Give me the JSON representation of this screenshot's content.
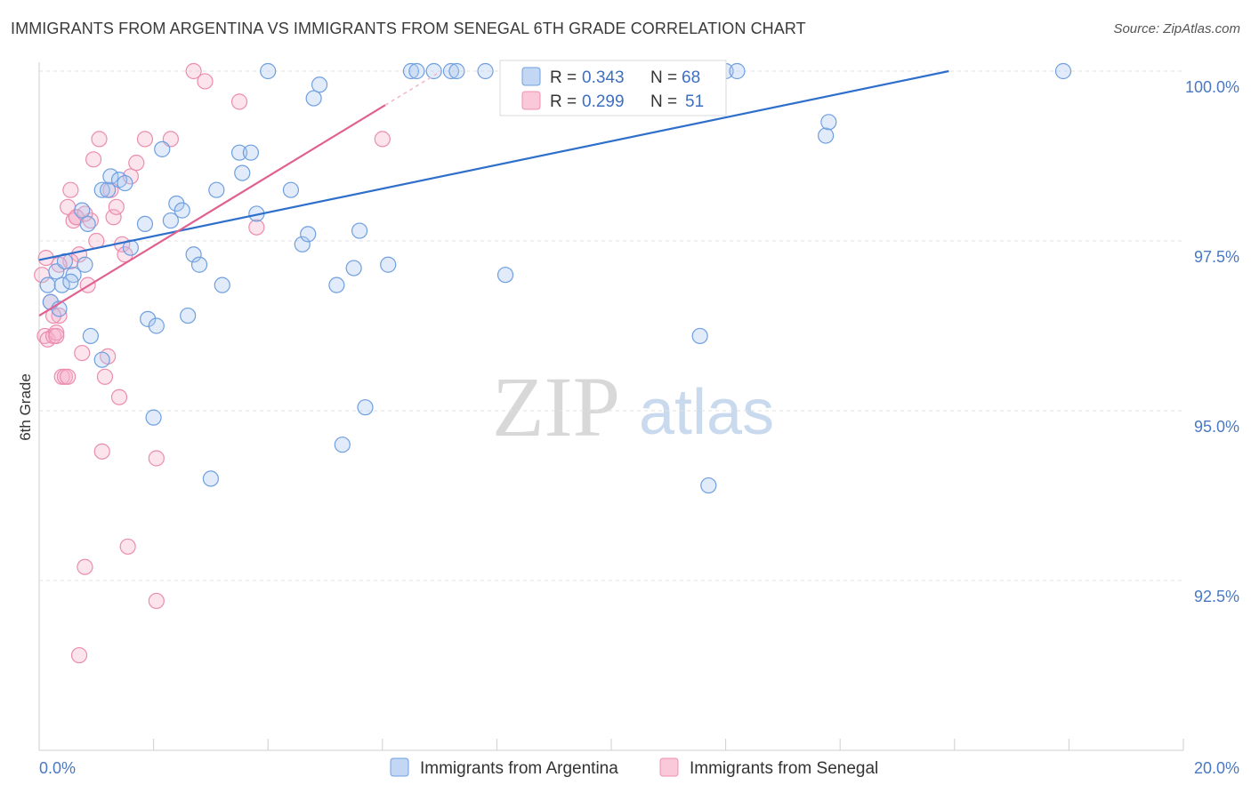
{
  "header": {
    "title": "IMMIGRANTS FROM ARGENTINA VS IMMIGRANTS FROM SENEGAL 6TH GRADE CORRELATION CHART",
    "source": "Source: ZipAtlas.com"
  },
  "watermark": {
    "zip": "ZIP",
    "atlas": "atlas"
  },
  "legend": {
    "r_label": "R =",
    "n_label": "N =",
    "argentina": {
      "r": "0.343",
      "n": "68"
    },
    "senegal": {
      "r": "0.299",
      "n": "51"
    }
  },
  "colors": {
    "argentina": "#6f9fe0",
    "argentina_line": "#2f6fcc",
    "senegal": "#f08fb0",
    "senegal_line": "#e06090",
    "axis_text": "#4a78c2"
  },
  "chart_data": {
    "type": "scatter",
    "title": "IMMIGRANTS FROM ARGENTINA VS IMMIGRANTS FROM SENEGAL 6TH GRADE CORRELATION CHART",
    "xlabel": "",
    "ylabel": "6th Grade",
    "xlim": [
      0,
      20
    ],
    "ylim": [
      90.2,
      100.45
    ],
    "x_tick_labels": [
      "0.0%",
      "20.0%"
    ],
    "y_ticks": [
      {
        "value": 100.0,
        "label": "100.0%"
      },
      {
        "value": 97.5,
        "label": "97.5%"
      },
      {
        "value": 95.0,
        "label": "95.0%"
      },
      {
        "value": 92.5,
        "label": "92.5%"
      }
    ],
    "series": [
      {
        "name": "Immigrants from Argentina",
        "color": "#6f9fe0",
        "trend": {
          "x": [
            0,
            15.9
          ],
          "y": [
            97.22,
            100.0
          ]
        },
        "points": [
          [
            0.15,
            96.85
          ],
          [
            0.2,
            96.6
          ],
          [
            0.35,
            96.5
          ],
          [
            0.3,
            97.05
          ],
          [
            0.4,
            96.85
          ],
          [
            0.45,
            97.2
          ],
          [
            0.6,
            97.0
          ],
          [
            0.8,
            97.15
          ],
          [
            0.75,
            97.95
          ],
          [
            0.85,
            97.75
          ],
          [
            0.9,
            96.1
          ],
          [
            1.1,
            98.25
          ],
          [
            1.2,
            98.25
          ],
          [
            1.25,
            98.45
          ],
          [
            1.4,
            98.4
          ],
          [
            1.5,
            98.35
          ],
          [
            1.6,
            97.4
          ],
          [
            1.85,
            97.75
          ],
          [
            1.9,
            96.35
          ],
          [
            2.05,
            96.25
          ],
          [
            2.0,
            94.9
          ],
          [
            2.15,
            98.85
          ],
          [
            2.3,
            97.8
          ],
          [
            2.4,
            98.05
          ],
          [
            2.5,
            97.95
          ],
          [
            2.6,
            96.4
          ],
          [
            2.7,
            97.3
          ],
          [
            2.8,
            97.15
          ],
          [
            3.0,
            94.0
          ],
          [
            3.1,
            98.25
          ],
          [
            3.2,
            96.85
          ],
          [
            3.5,
            98.8
          ],
          [
            3.55,
            98.5
          ],
          [
            3.7,
            98.8
          ],
          [
            3.8,
            97.9
          ],
          [
            4.0,
            100.0
          ],
          [
            4.4,
            98.25
          ],
          [
            4.6,
            97.45
          ],
          [
            4.7,
            97.6
          ],
          [
            4.8,
            99.6
          ],
          [
            4.9,
            99.8
          ],
          [
            5.2,
            96.85
          ],
          [
            5.5,
            97.1
          ],
          [
            5.6,
            97.65
          ],
          [
            5.7,
            95.05
          ],
          [
            6.1,
            97.15
          ],
          [
            6.5,
            100.0
          ],
          [
            6.6,
            100.0
          ],
          [
            6.9,
            100.0
          ],
          [
            7.2,
            100.0
          ],
          [
            7.3,
            100.0
          ],
          [
            7.8,
            100.0
          ],
          [
            8.15,
            97.0
          ],
          [
            8.2,
            100.0
          ],
          [
            8.3,
            100.0
          ],
          [
            8.6,
            100.0
          ],
          [
            9.5,
            100.0
          ],
          [
            9.8,
            100.0
          ],
          [
            11.55,
            96.1
          ],
          [
            11.7,
            93.9
          ],
          [
            12.0,
            100.0
          ],
          [
            12.2,
            100.0
          ],
          [
            13.75,
            99.05
          ],
          [
            13.8,
            99.25
          ],
          [
            17.9,
            100.0
          ],
          [
            0.55,
            96.9
          ],
          [
            1.1,
            95.75
          ],
          [
            5.3,
            94.5
          ]
        ]
      },
      {
        "name": "Immigrants from Senegal",
        "color": "#f08fb0",
        "trend": {
          "x": [
            0,
            6.05
          ],
          "y": [
            96.4,
            99.5
          ]
        },
        "points": [
          [
            0.05,
            97.0
          ],
          [
            0.1,
            96.1
          ],
          [
            0.15,
            96.05
          ],
          [
            0.2,
            96.6
          ],
          [
            0.25,
            96.1
          ],
          [
            0.3,
            96.15
          ],
          [
            0.35,
            96.4
          ],
          [
            0.4,
            95.5
          ],
          [
            0.45,
            95.5
          ],
          [
            0.5,
            98.0
          ],
          [
            0.55,
            98.25
          ],
          [
            0.6,
            97.8
          ],
          [
            0.65,
            97.85
          ],
          [
            0.7,
            97.3
          ],
          [
            0.75,
            95.85
          ],
          [
            0.8,
            92.7
          ],
          [
            0.85,
            96.85
          ],
          [
            0.9,
            97.8
          ],
          [
            0.95,
            98.7
          ],
          [
            1.0,
            97.5
          ],
          [
            1.05,
            99.0
          ],
          [
            1.1,
            94.4
          ],
          [
            1.15,
            95.5
          ],
          [
            1.2,
            95.8
          ],
          [
            1.25,
            98.25
          ],
          [
            1.3,
            97.85
          ],
          [
            1.35,
            98.0
          ],
          [
            1.4,
            95.2
          ],
          [
            1.45,
            97.45
          ],
          [
            1.5,
            97.3
          ],
          [
            1.55,
            93.0
          ],
          [
            1.6,
            98.45
          ],
          [
            1.7,
            98.65
          ],
          [
            1.85,
            99.0
          ],
          [
            2.05,
            94.3
          ],
          [
            2.05,
            92.2
          ],
          [
            2.3,
            99.0
          ],
          [
            2.7,
            100.0
          ],
          [
            2.9,
            99.85
          ],
          [
            3.5,
            99.55
          ],
          [
            3.8,
            97.7
          ],
          [
            6.0,
            99.0
          ],
          [
            0.12,
            97.25
          ],
          [
            0.3,
            96.1
          ],
          [
            0.55,
            97.2
          ],
          [
            0.65,
            97.85
          ],
          [
            0.7,
            91.4
          ],
          [
            0.25,
            96.4
          ],
          [
            0.8,
            97.9
          ],
          [
            0.35,
            97.15
          ],
          [
            0.5,
            95.5
          ]
        ]
      }
    ]
  },
  "bottom_legend": {
    "argentina": "Immigrants from Argentina",
    "senegal": "Immigrants from Senegal"
  }
}
